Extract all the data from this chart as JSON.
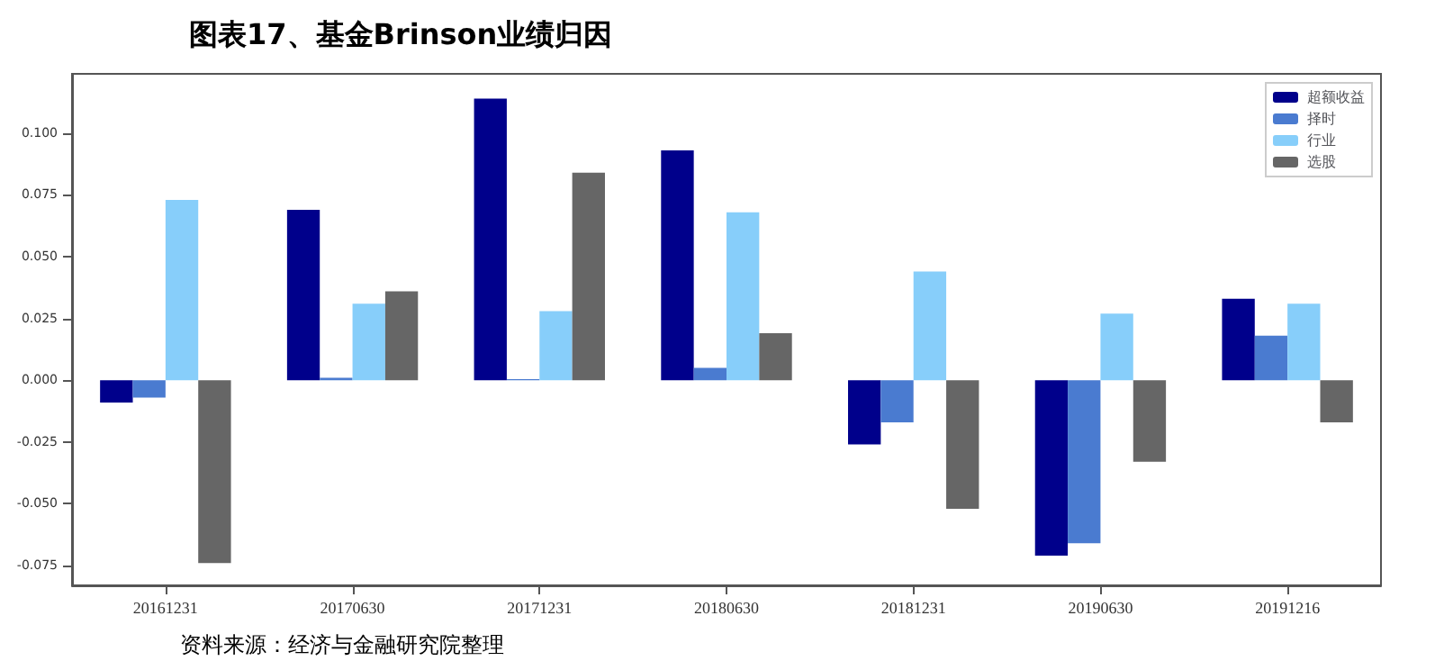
{
  "chart_data": {
    "type": "bar",
    "title": "图表17、基金Brinson业绩归因",
    "categories": [
      "20161231",
      "20170630",
      "20171231",
      "20180630",
      "20181231",
      "20190630",
      "20191216"
    ],
    "series": [
      {
        "name": "超额收益",
        "color": "#00008b",
        "values": [
          -0.009,
          0.069,
          0.114,
          0.093,
          -0.026,
          -0.071,
          0.033
        ]
      },
      {
        "name": "择时",
        "color": "#4a7bd0",
        "values": [
          -0.007,
          0.001,
          0.0005,
          0.005,
          -0.017,
          -0.066,
          0.018
        ]
      },
      {
        "name": "行业",
        "color": "#87cefa",
        "values": [
          0.073,
          0.031,
          0.028,
          0.068,
          0.044,
          0.027,
          0.031
        ]
      },
      {
        "name": "选股",
        "color": "#666666",
        "values": [
          -0.074,
          0.036,
          0.084,
          0.019,
          -0.052,
          -0.033,
          -0.017
        ]
      }
    ],
    "ylim": [
      -0.083,
      0.124
    ],
    "yticks": [
      -0.075,
      {
        "value": -0.05,
        "label": "-0.050"
      },
      -0.025,
      {
        "value": 0,
        "label": "0.000"
      },
      0.025,
      {
        "value": 0.05,
        "label": "0.050"
      },
      0.075,
      {
        "value": 0.1,
        "label": "0.100"
      }
    ],
    "grid": false,
    "legend": "top right",
    "annotations": [
      "资料来源：经济与金融研究院整理"
    ]
  }
}
